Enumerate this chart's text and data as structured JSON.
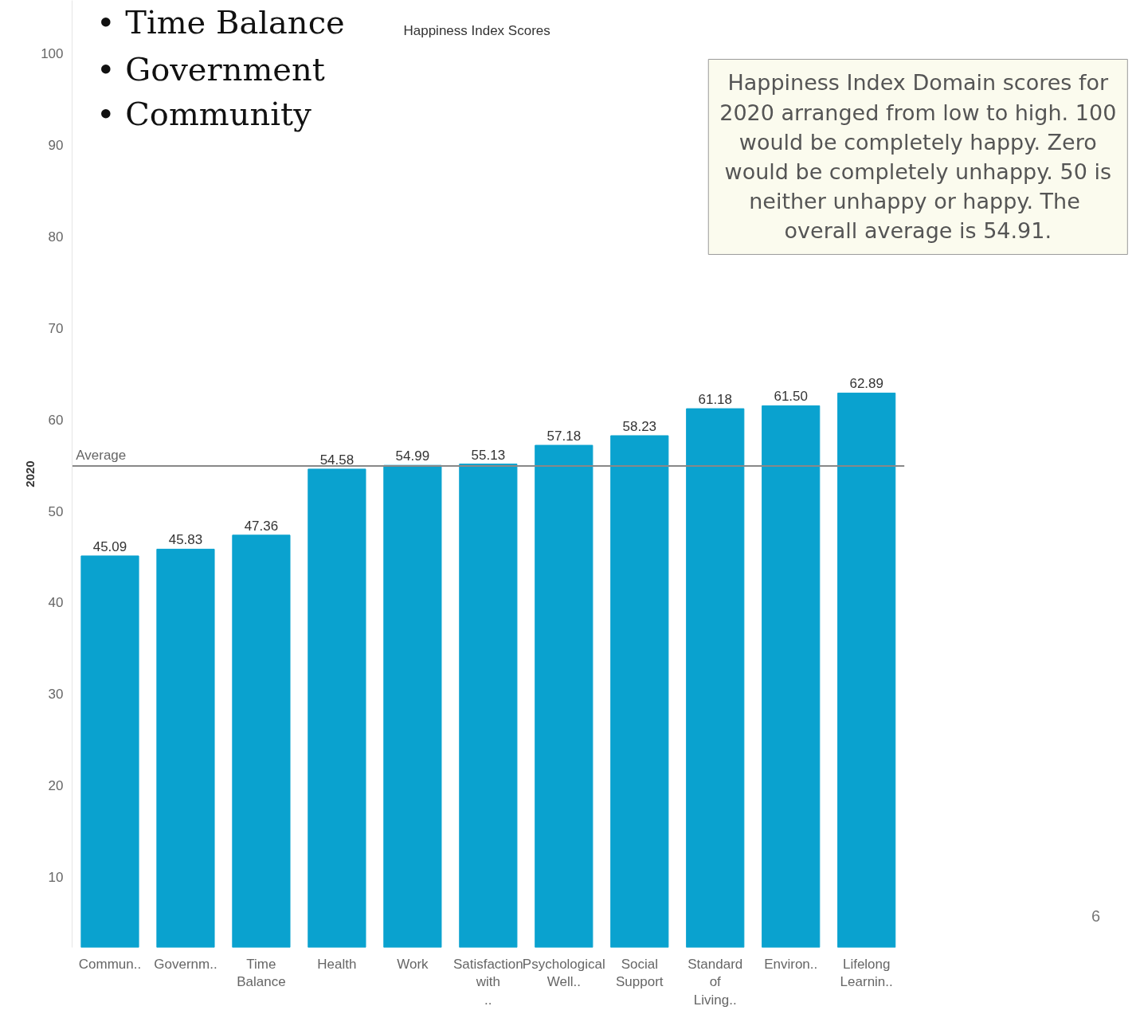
{
  "chart_data": {
    "type": "bar",
    "title": "Happiness Index Scores",
    "ylabel": "2020",
    "categories": [
      "Commun..",
      "Governm..",
      "Time Balance",
      "Health",
      "Work",
      "Satisfaction with ..",
      "Psychological Well..",
      "Social Support",
      "Standard of Living..",
      "Environ..",
      "Lifelong Learnin.."
    ],
    "values": [
      45.09,
      45.83,
      47.36,
      54.58,
      54.99,
      55.13,
      57.18,
      58.23,
      61.18,
      61.5,
      62.89
    ],
    "value_labels": [
      "45.09",
      "45.83",
      "47.36",
      "54.58",
      "54.99",
      "55.13",
      "57.18",
      "58.23",
      "61.18",
      "61.50",
      "62.89"
    ],
    "color": "#0aa2cf",
    "grid": false,
    "ylim": [
      2.3,
      105.8
    ],
    "yticks": [
      10,
      20,
      30,
      40,
      50,
      60,
      70,
      80,
      90,
      100
    ],
    "ref_lines": [
      {
        "axis": "y",
        "value": 54.91,
        "label": "Average",
        "color": "#888888"
      }
    ],
    "annotations": [
      "• Time Balance",
      "• Government",
      "• Community",
      "Happiness Index Domain scores for\n2020 arranged from low to high. 100\nwould be completely happy. Zero\nwould be completely unhappy. 50 is\nneither unhappy or happy.  The\noverall average is 54.91.",
      "6"
    ]
  }
}
